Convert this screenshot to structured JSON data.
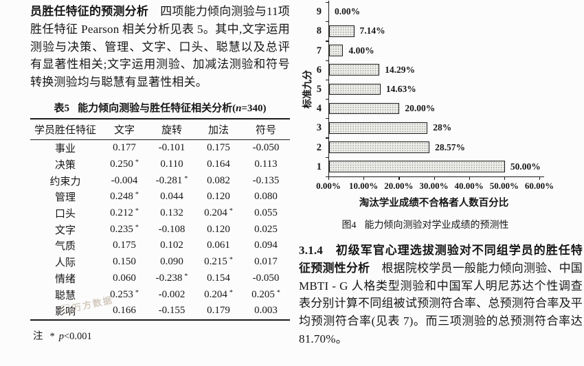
{
  "page": {
    "background": "#fcfcfc",
    "text_color": "#161616"
  },
  "left_column": {
    "paragraph_lead": "员胜任特征的预测分析",
    "paragraph_rest": "　四项能力倾向测验与11项胜任特征 Pearson 相关分析见表 5。其中,文字运用测验与决策、管理、文字、口头、聪慧以及总评有显著性相关;文字运用测验、加减法测验和符号转换测验均与聪慧有显著性相关。"
  },
  "table": {
    "title_label": "表5",
    "title_text": "能力倾向测验与胜任特征相关分析(",
    "title_n": "n",
    "title_tail": "=340)",
    "headers": [
      "学员胜任特征",
      "文字",
      "旋转",
      "加法",
      "符号"
    ],
    "rows": [
      [
        "事业",
        "0.177",
        "-0.101",
        "0.175",
        "-0.050"
      ],
      [
        "决策",
        "0.250*",
        "0.110",
        "0.164",
        "0.113"
      ],
      [
        "约束力",
        "-0.004",
        "-0.281*",
        "0.082",
        "-0.135"
      ],
      [
        "管理",
        "0.248*",
        "0.044",
        "0.120",
        "0.080"
      ],
      [
        "口头",
        "0.212*",
        "0.132",
        "0.204*",
        "0.055"
      ],
      [
        "文字",
        "0.235*",
        "-0.108",
        "0.120",
        "0.025"
      ],
      [
        "气质",
        "0.175",
        "0.102",
        "0.061",
        "0.094"
      ],
      [
        "人际",
        "0.150",
        "0.090",
        "0.215*",
        "0.017"
      ],
      [
        "情绪",
        "0.060",
        "-0.238*",
        "0.154",
        "-0.050"
      ],
      [
        "聪慧",
        "0.253*",
        "-0.002",
        "0.204*",
        "0.205*"
      ],
      [
        "影响",
        "0.166",
        "-0.155",
        "0.179",
        "0.003"
      ]
    ],
    "note_label": "注",
    "note_star": "*",
    "note_p": "p",
    "note_rest": "<0.001"
  },
  "chart_data": {
    "type": "bar",
    "orientation": "horizontal",
    "title": "",
    "ylabel": "标准九分",
    "xlabel": "淘汰学业成绩不合格者人数百分比",
    "categories": [
      "9",
      "8",
      "7",
      "6",
      "5",
      "4",
      "3",
      "2",
      "1"
    ],
    "values": [
      0.0,
      7.14,
      4.0,
      14.29,
      14.63,
      20.0,
      28.0,
      28.57,
      50.0
    ],
    "data_labels": [
      "0.00%",
      "7.14%",
      "4.00%",
      "14.29%",
      "14.63%",
      "20.00%",
      "28%",
      "28.57%",
      "50.00%"
    ],
    "xlim": [
      0,
      60
    ],
    "x_ticks": [
      "0.00%",
      "10.00%",
      "20.00%",
      "30.00%",
      "40.00%",
      "50.00%",
      "60.00%"
    ],
    "x_tick_values": [
      0,
      10,
      20,
      30,
      40,
      50,
      60
    ],
    "grid": false,
    "legend": false,
    "bar_fill": "#ededea",
    "bar_border": "#1a1a1a"
  },
  "figure": {
    "caption_label": "图4",
    "caption_text": "能力倾向测验对学业成绩的预测性"
  },
  "right_column": {
    "section_heading": "3.1.4　初级军官心理选拔测验对不同组学员的胜任特征预测性分析",
    "paragraph_rest": "　根据院校学员一般能力倾向测验、中国 MBTI - G 人格类型测验和中国军人明尼苏达个性调查表分别计算不同组被试预测符合率、总预测符合率及平均预测符合率(见表 7)。而三项测验的总预测符合率达 81.70%。"
  },
  "watermark": {
    "text": "万方数据"
  }
}
